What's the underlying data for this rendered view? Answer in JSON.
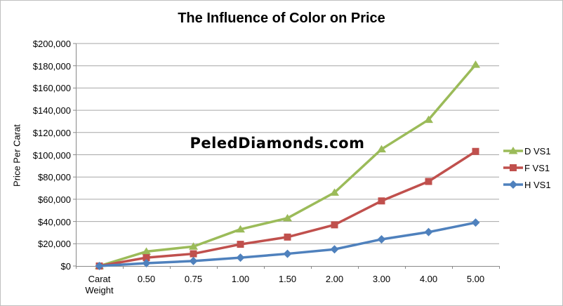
{
  "title": "The Influence of Color on Price",
  "watermark": "PeledDiamonds.com",
  "y_axis": {
    "title": "Price Per Carat",
    "tick_labels": [
      "$0",
      "$20,000",
      "$40,000",
      "$60,000",
      "$80,000",
      "$100,000",
      "$120,000",
      "$140,000",
      "$160,000",
      "$180,000",
      "$200,000"
    ]
  },
  "x_axis": {
    "labels": [
      "Carat Weight",
      "0.50",
      "0.75",
      "1.00",
      "1.50",
      "2.00",
      "3.00",
      "4.00",
      "5.00"
    ]
  },
  "legend": {
    "entries": [
      "D VS1",
      "F VS1",
      "H VS1"
    ]
  },
  "colors": {
    "series_green": "#9BBB59",
    "series_red": "#C0504D",
    "series_blue": "#4F81BD",
    "gridline": "#A6A6A6",
    "axis": "#898989"
  },
  "chart_data": {
    "type": "line",
    "title": "The Influence of Color on Price",
    "xlabel": "",
    "ylabel": "Price Per Carat",
    "categories": [
      "Carat Weight",
      "0.50",
      "0.75",
      "1.00",
      "1.50",
      "2.00",
      "3.00",
      "4.00",
      "5.00"
    ],
    "series": [
      {
        "name": "D VS1",
        "color": "#9BBB59",
        "marker": "triangle",
        "values": [
          0,
          13000,
          17500,
          33000,
          43000,
          66000,
          105000,
          131500,
          181000
        ]
      },
      {
        "name": "F VS1",
        "color": "#C0504D",
        "marker": "square",
        "values": [
          0,
          7500,
          11000,
          19500,
          26000,
          37000,
          58500,
          76000,
          103000
        ]
      },
      {
        "name": "H VS1",
        "color": "#4F81BD",
        "marker": "diamond",
        "values": [
          0,
          2500,
          4500,
          7500,
          11000,
          15000,
          24000,
          30500,
          39000
        ]
      }
    ],
    "ylim": [
      0,
      200000
    ],
    "ytick_step": 20000,
    "grid": true,
    "legend_position": "right",
    "watermark": "PeledDiamonds.com"
  }
}
